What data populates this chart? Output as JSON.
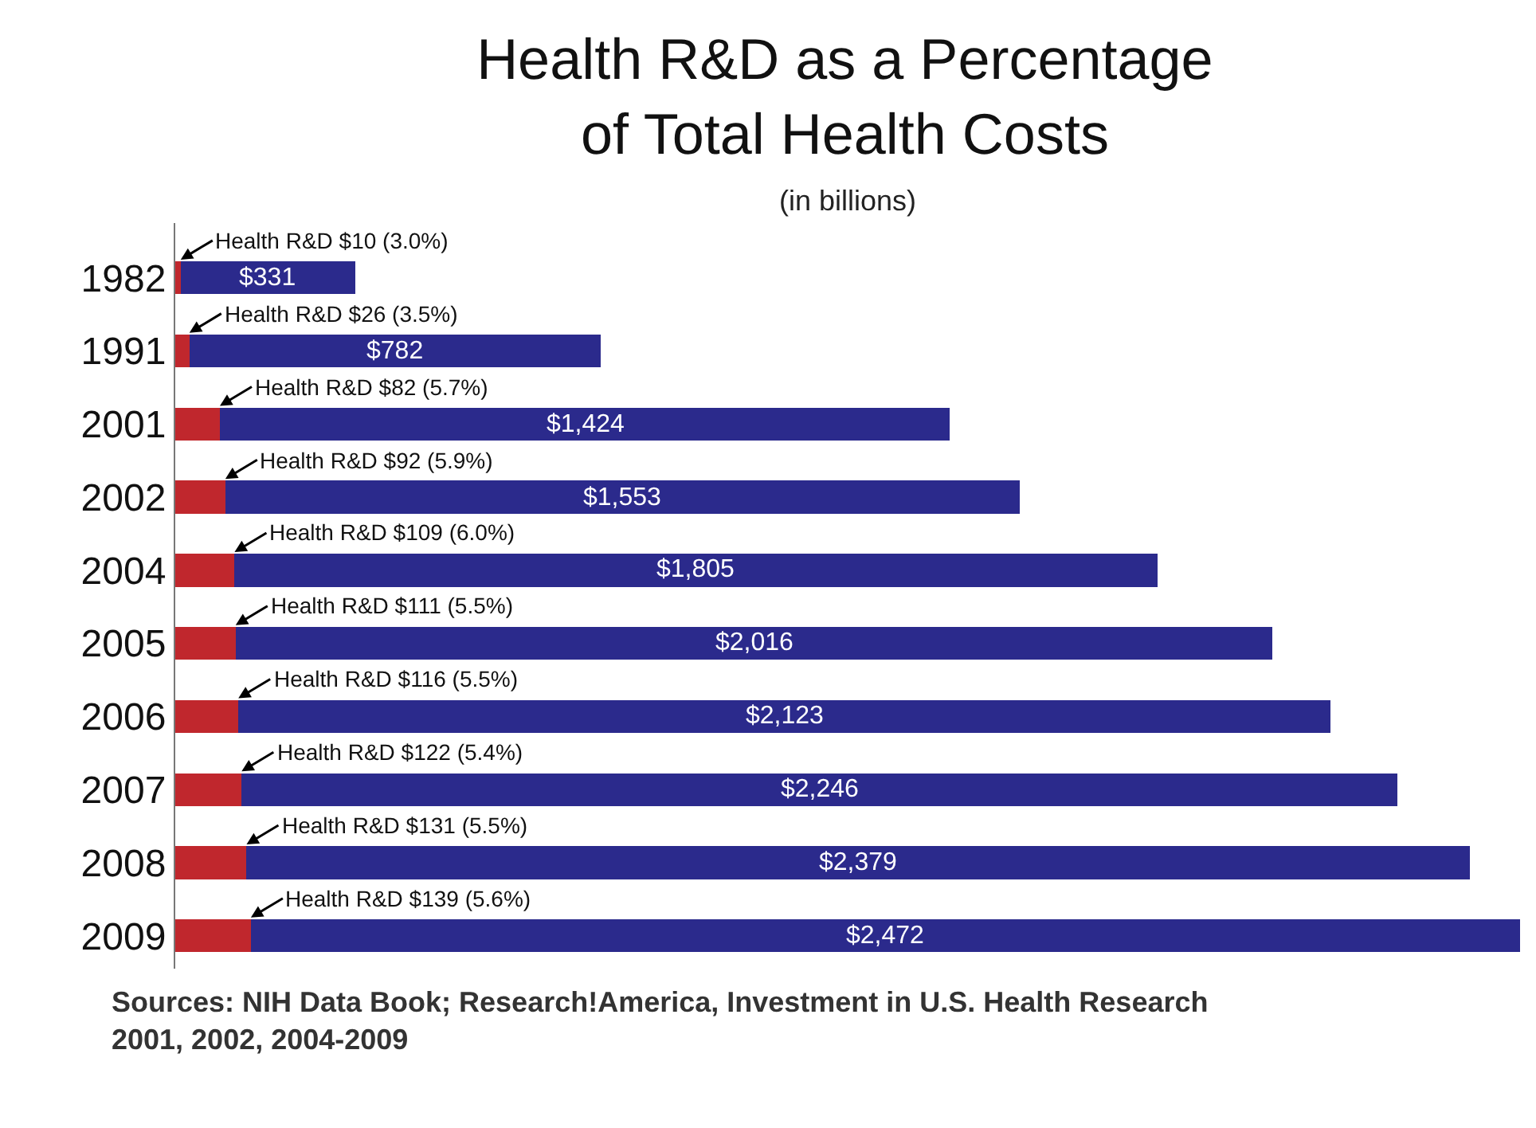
{
  "chart_data": {
    "type": "bar",
    "orientation": "horizontal",
    "stacked": true,
    "title": "Health R&D as a Percentage of Total Health Costs",
    "subtitle": "(in billions)",
    "categories": [
      "1982",
      "1991",
      "2001",
      "2002",
      "2004",
      "2005",
      "2006",
      "2007",
      "2008",
      "2009"
    ],
    "series": [
      {
        "color": "#c0272d",
        "values": [
          10,
          26,
          82,
          92,
          109,
          111,
          116,
          122,
          131,
          139
        ],
        "value_labels": [
          "Health R&D $10 (3.0%)",
          "Health R&D $26 (3.5%)",
          "Health R&D $82 (5.7%)",
          "Health R&D $92 (5.9%)",
          "Health R&D $109 (6.0%)",
          "Health R&D $111 (5.5%)",
          "Health R&D $116 (5.5%)",
          "Health R&D $122 (5.4%)",
          "Health R&D $131 (5.5%)",
          "Health R&D $139 (5.6%)"
        ]
      },
      {
        "color": "#2b2a8c",
        "values": [
          321,
          756,
          1342,
          1461,
          1696,
          1905,
          2007,
          2124,
          2248,
          2333
        ]
      }
    ],
    "totals": [
      "$331",
      "$782",
      "$1,424",
      "$1,553",
      "$1,805",
      "$2,016",
      "$2,123",
      "$2,246",
      "$2,379",
      "$2,472"
    ],
    "xlim": [
      0,
      2472
    ],
    "tick_labels": "y",
    "grid": false,
    "annotations": [
      "Sources: NIH Data Book; Research!America, Investment in U.S. Health Research 2001, 2002, 2004-2009"
    ]
  }
}
